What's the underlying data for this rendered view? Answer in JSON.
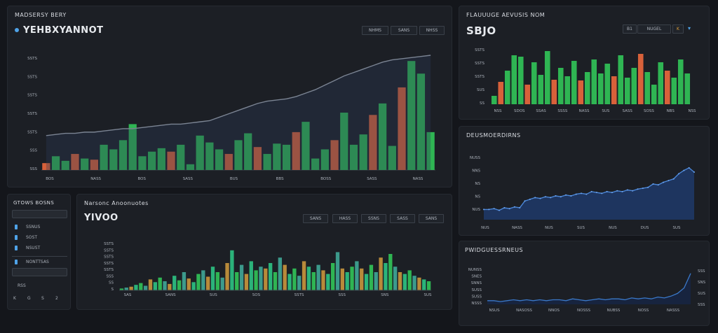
{
  "main_panel": {
    "title": "MADSERSY BERY",
    "value": "YEHBXYANNOT",
    "buttons": [
      "NHMS",
      "SANS",
      "NHSS"
    ],
    "y_ticks": [
      "SSTS",
      "SSTS",
      "SSTS",
      "SSTS",
      "SSTS",
      "SSS",
      "SSS"
    ],
    "x_ticks": [
      "BOS",
      "NASS",
      "BOS",
      "SASS",
      "BUS",
      "BBS",
      "BOSS",
      "SASS",
      "NASS"
    ]
  },
  "top_right_panel": {
    "title": "FLAUUUGE AEVUSIS NOM",
    "value": "SBJO",
    "controls": [
      "B1",
      "NUGEL",
      "K"
    ],
    "y_ticks": [
      "SSTS",
      "SSTS",
      "SSTS",
      "SUS",
      "SS"
    ],
    "x_ticks": [
      "NSS",
      "SDOS",
      "SSAS",
      "SSSS",
      "NASS",
      "SUS",
      "SASS",
      "SOSS",
      "NBS",
      "NSS"
    ]
  },
  "sidebar_panel": {
    "title": "GTOWS BOSNS",
    "items": [
      "SSNUS",
      "SOST",
      "NSUST",
      "NONTTSAS",
      "RSS"
    ],
    "bottom_icons": [
      "K",
      "G",
      "S",
      "2"
    ]
  },
  "middle_panel": {
    "title": "Narsonc Anoonuotes",
    "value": "YIVOO",
    "buttons": [
      "SANS",
      "HASS",
      "SSNS",
      "SASS",
      "SANS"
    ],
    "y_ticks": [
      "SSTS",
      "SSTS",
      "SSTS",
      "SSTS",
      "SSTS",
      "SSS",
      "SS",
      "S"
    ],
    "x_ticks": [
      "SAS",
      "SANS",
      "SUS",
      "SOS",
      "SSTS",
      "SSS",
      "SNS",
      "SUS"
    ]
  },
  "area_panel": {
    "title": "DEUSMOERDIRNS",
    "y_ticks": [
      "NUSS",
      "NNS",
      "NS",
      "NS",
      "NUS"
    ],
    "x_ticks": [
      "NUS",
      "NASS",
      "NUS",
      "SUS",
      "NUS",
      "DUS",
      "SUS"
    ]
  },
  "line_panel": {
    "title": "PWIDGUESSRNEUS",
    "y_ticks": [
      "NUNSS",
      "SNES",
      "SNNS",
      "SUSS",
      "SUSS",
      "NSSS"
    ],
    "y_ticks_right": [
      "SSS",
      "SNS",
      "SUS",
      "SSS"
    ],
    "x_ticks": [
      "NSUS",
      "NASOSS",
      "NNOS",
      "NOSSS",
      "NUBSS",
      "NOSS",
      "NASSS"
    ]
  },
  "colors": {
    "green": "#2fb553",
    "orange": "#d8613a",
    "blue": "#3a78c8",
    "panel": "#1c1f25"
  },
  "chart_data": [
    {
      "type": "bar",
      "name": "main-combo",
      "series": [
        {
          "name": "",
          "color": "green",
          "values": [
            6,
            12,
            8,
            14,
            10,
            9,
            22,
            18,
            26,
            40,
            12,
            16,
            19,
            16,
            22,
            5,
            30,
            24,
            18,
            14,
            26,
            32,
            20,
            14,
            23,
            22,
            33,
            42,
            10,
            18,
            26,
            50,
            22,
            31,
            48,
            58,
            21,
            72,
            95,
            84,
            33
          ]
        }
      ],
      "orange_idx": [
        0,
        3,
        5,
        13,
        19,
        22,
        26,
        30,
        34,
        37
      ],
      "line": [
        30,
        31,
        32,
        32,
        33,
        33,
        34,
        35,
        36,
        36,
        37,
        38,
        39,
        40,
        40,
        41,
        42,
        43,
        46,
        49,
        52,
        55,
        58,
        60,
        61,
        62,
        64,
        67,
        70,
        74,
        78,
        82,
        85,
        88,
        91,
        94,
        96,
        97,
        98,
        99,
        100
      ],
      "ylim": [
        0,
        100
      ]
    },
    {
      "type": "bar",
      "name": "top-right-bars",
      "values": [
        12,
        32,
        48,
        70,
        68,
        28,
        60,
        42,
        76,
        35,
        52,
        40,
        62,
        34,
        46,
        64,
        44,
        58,
        40,
        70,
        38,
        52,
        72,
        46,
        28,
        60,
        48,
        38,
        64,
        44
      ],
      "orange_idx": [
        1,
        5,
        9,
        13,
        18,
        22,
        26
      ],
      "ylim": [
        0,
        80
      ]
    },
    {
      "type": "bar",
      "name": "middle-bars",
      "values": [
        2,
        3,
        4,
        6,
        8,
        5,
        12,
        9,
        14,
        10,
        7,
        16,
        11,
        20,
        13,
        9,
        18,
        22,
        15,
        26,
        20,
        14,
        30,
        44,
        20,
        28,
        18,
        32,
        22,
        26,
        24,
        30,
        20,
        36,
        28,
        18,
        24,
        16,
        32,
        26,
        20,
        28,
        22,
        18,
        30,
        42,
        24,
        20,
        26,
        32,
        24,
        18,
        28,
        20,
        36,
        30,
        40,
        26,
        20,
        18,
        22,
        16,
        14,
        12,
        10
      ],
      "ylim": [
        0,
        50
      ]
    },
    {
      "type": "area",
      "name": "area-series",
      "values": [
        12,
        12,
        13,
        11,
        14,
        13,
        15,
        14,
        22,
        24,
        26,
        25,
        27,
        26,
        28,
        27,
        29,
        28,
        30,
        31,
        30,
        33,
        32,
        31,
        33,
        32,
        34,
        33,
        35,
        34,
        36,
        37,
        38,
        42,
        41,
        44,
        46,
        48,
        54,
        58,
        61,
        56
      ],
      "ylim": [
        0,
        70
      ]
    },
    {
      "type": "line",
      "name": "line-series",
      "values": [
        4,
        4,
        3,
        4,
        5,
        4,
        5,
        4,
        5,
        4,
        5,
        5,
        4,
        6,
        5,
        4,
        5,
        6,
        5,
        6,
        6,
        5,
        7,
        6,
        7,
        6,
        8,
        7,
        9,
        12,
        18,
        34
      ],
      "ylim": [
        0,
        40
      ]
    }
  ]
}
